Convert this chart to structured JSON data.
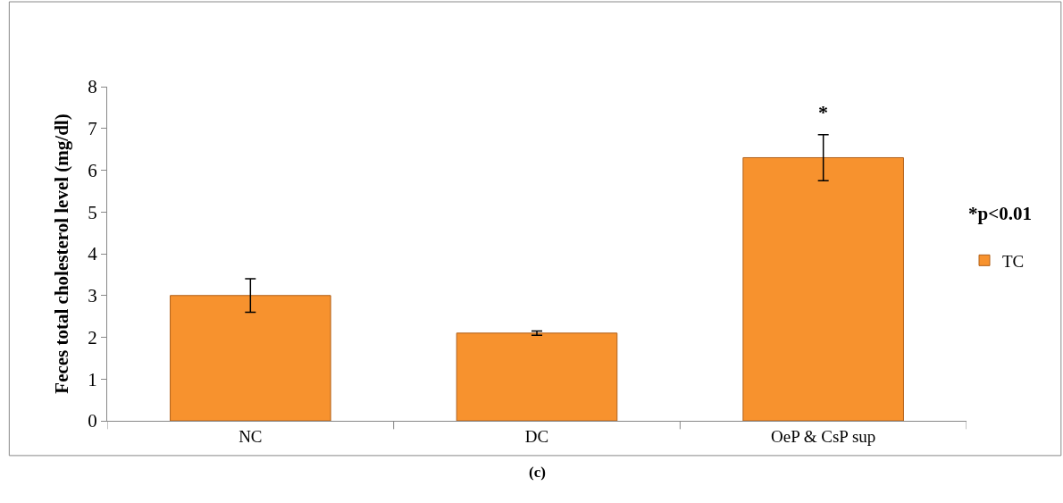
{
  "chart_data": {
    "type": "bar",
    "ylabel": "Feces total cholesterol level (mg/dl)",
    "categories": [
      "NC",
      "DC",
      "OeP & CsP sup"
    ],
    "series": [
      {
        "name": "TC",
        "color": "#f7922e",
        "values": [
          3.0,
          2.1,
          6.3
        ],
        "errors": [
          0.4,
          0.05,
          0.55
        ]
      }
    ],
    "ylim": [
      0,
      8
    ],
    "yticks": [
      0,
      1,
      2,
      3,
      4,
      5,
      6,
      7,
      8
    ],
    "legend": "right",
    "annotations": [
      "*",
      "*p<0.01",
      "(c)"
    ]
  }
}
